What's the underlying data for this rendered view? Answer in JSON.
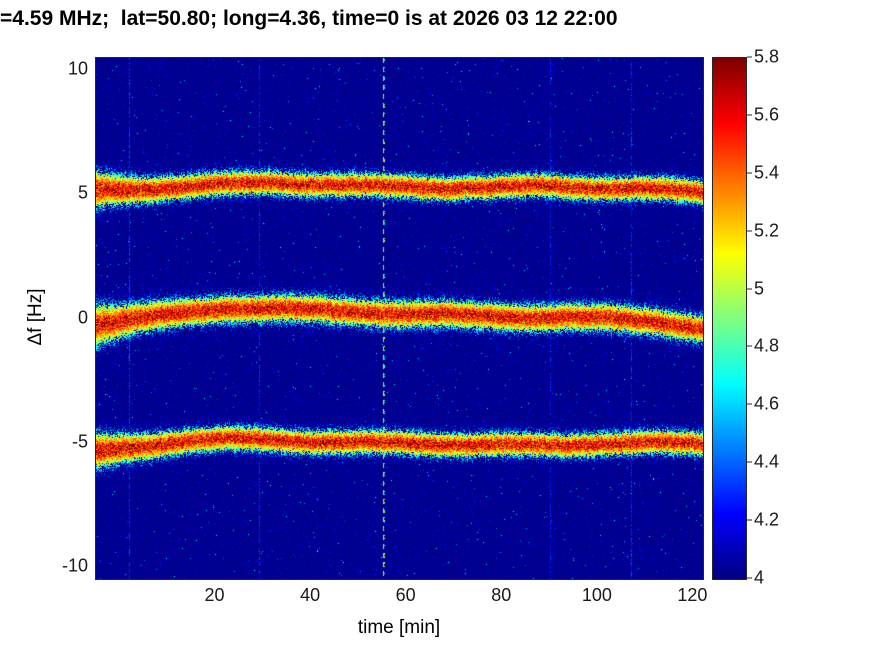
{
  "chart_data": {
    "type": "heatmap",
    "subtype": "doppler-spectrogram",
    "title": "=4.59 MHz;  lat=50.80; long=4.36, time=0 is at 2026 03 12 22:00",
    "xlabel": "time [min]",
    "ylabel": "Δf [Hz]",
    "xlim": [
      -5,
      122
    ],
    "ylim": [
      -10.5,
      10.5
    ],
    "xticks": [
      20,
      40,
      60,
      80,
      100,
      120
    ],
    "yticks": [
      -10,
      -5,
      0,
      5,
      10
    ],
    "grid": false,
    "colormap": "jet",
    "colorbar": {
      "min": 4,
      "max": 5.8,
      "ticks": [
        4,
        4.2,
        4.4,
        4.6,
        4.8,
        5,
        5.2,
        5.4,
        5.6,
        5.8
      ],
      "position": "right"
    },
    "background_value": 4.03,
    "bands": [
      {
        "name": "upper-doppler-trace",
        "halfwidth": 0.42,
        "points": [
          [
            -5,
            5.15
          ],
          [
            5,
            5.25
          ],
          [
            20,
            5.4
          ],
          [
            32,
            5.5
          ],
          [
            45,
            5.4
          ],
          [
            55,
            5.35
          ],
          [
            65,
            5.3
          ],
          [
            80,
            5.3
          ],
          [
            90,
            5.35
          ],
          [
            100,
            5.3
          ],
          [
            110,
            5.25
          ],
          [
            122,
            5.1
          ]
        ]
      },
      {
        "name": "center-doppler-trace",
        "halfwidth": 0.48,
        "points": [
          [
            -5,
            -0.2
          ],
          [
            3,
            0.0
          ],
          [
            12,
            0.2
          ],
          [
            22,
            0.45
          ],
          [
            30,
            0.45
          ],
          [
            40,
            0.35
          ],
          [
            50,
            0.3
          ],
          [
            60,
            0.2
          ],
          [
            70,
            0.15
          ],
          [
            82,
            0.1
          ],
          [
            95,
            0.05
          ],
          [
            105,
            0.0
          ],
          [
            113,
            -0.1
          ],
          [
            122,
            -0.4
          ]
        ]
      },
      {
        "name": "lower-doppler-trace",
        "halfwidth": 0.42,
        "points": [
          [
            -5,
            -5.35
          ],
          [
            3,
            -5.15
          ],
          [
            12,
            -4.95
          ],
          [
            22,
            -4.85
          ],
          [
            32,
            -4.85
          ],
          [
            42,
            -4.95
          ],
          [
            52,
            -5.0
          ],
          [
            62,
            -5.0
          ],
          [
            72,
            -5.05
          ],
          [
            82,
            -5.1
          ],
          [
            92,
            -5.1
          ],
          [
            102,
            -5.0
          ],
          [
            112,
            -5.0
          ],
          [
            122,
            -5.05
          ]
        ]
      }
    ],
    "artifacts": [
      {
        "type": "dashed-vertical-line",
        "t": 55,
        "value": 4.9
      },
      {
        "type": "faint-vertical-line",
        "t": 2,
        "value": 4.32
      },
      {
        "type": "faint-vertical-line",
        "t": 29,
        "value": 4.28
      },
      {
        "type": "faint-vertical-line",
        "t": 90,
        "value": 4.25
      },
      {
        "type": "faint-vertical-line",
        "t": 107,
        "value": 4.3
      }
    ]
  },
  "colors": {
    "figure_bg": "#ffffff",
    "axis_border": "#262626",
    "tick_label": "#1a1a1a",
    "title": "#000000"
  }
}
